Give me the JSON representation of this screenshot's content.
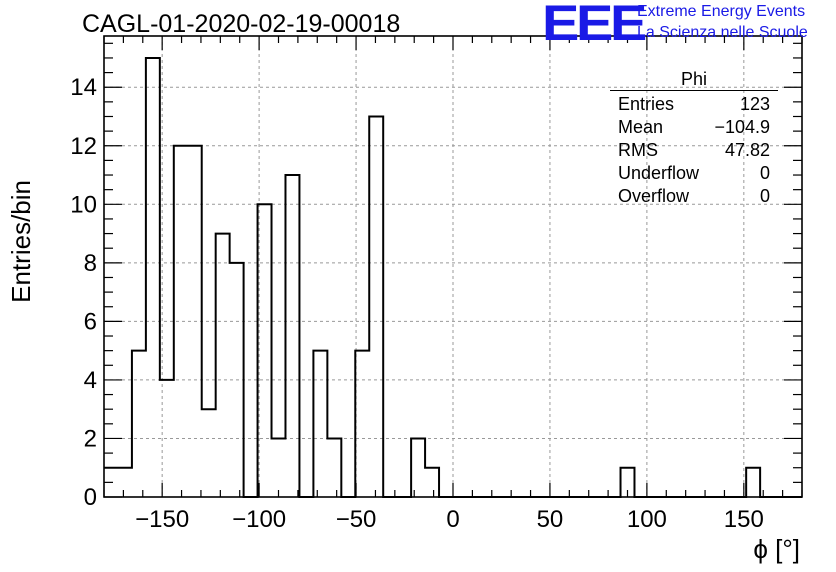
{
  "title": "CAGL-01-2020-02-19-00018",
  "logo": {
    "text": "EEE",
    "line1": "Extreme Energy Events",
    "line2": "La Scienza nelle Scuole",
    "color": "#1a1ae6"
  },
  "stats": {
    "name": "Phi",
    "rows": [
      {
        "label": "Entries",
        "value": "123"
      },
      {
        "label": "Mean",
        "value": "−104.9"
      },
      {
        "label": "RMS",
        "value": "47.82"
      },
      {
        "label": "Underflow",
        "value": "0"
      },
      {
        "label": "Overflow",
        "value": "0"
      }
    ]
  },
  "chart_data": {
    "type": "histogram",
    "title": "CAGL-01-2020-02-19-00018",
    "xlabel": "ϕ [°]",
    "ylabel": "Entries/bin",
    "xlim": [
      -180,
      180
    ],
    "ylim": [
      0,
      15.75
    ],
    "bin_width": 7.2,
    "bin_start": -180,
    "values": [
      1,
      1,
      5,
      15,
      4,
      12,
      12,
      3,
      9,
      8,
      0,
      10,
      2,
      11,
      0,
      5,
      2,
      0,
      5,
      13,
      0,
      0,
      2,
      1,
      0,
      0,
      0,
      0,
      0,
      0,
      0,
      0,
      0,
      0,
      0,
      0,
      0,
      1,
      0,
      0,
      0,
      0,
      0,
      0,
      0,
      0,
      1,
      0,
      0,
      0
    ],
    "xticks": [
      -150,
      -100,
      -50,
      0,
      50,
      100,
      150
    ],
    "xtick_labels": [
      "−150",
      "−100",
      "−50",
      "0",
      "50",
      "100",
      "150"
    ],
    "yticks": [
      0,
      2,
      4,
      6,
      8,
      10,
      12,
      14
    ],
    "grid": true,
    "line_color": "#000000"
  }
}
